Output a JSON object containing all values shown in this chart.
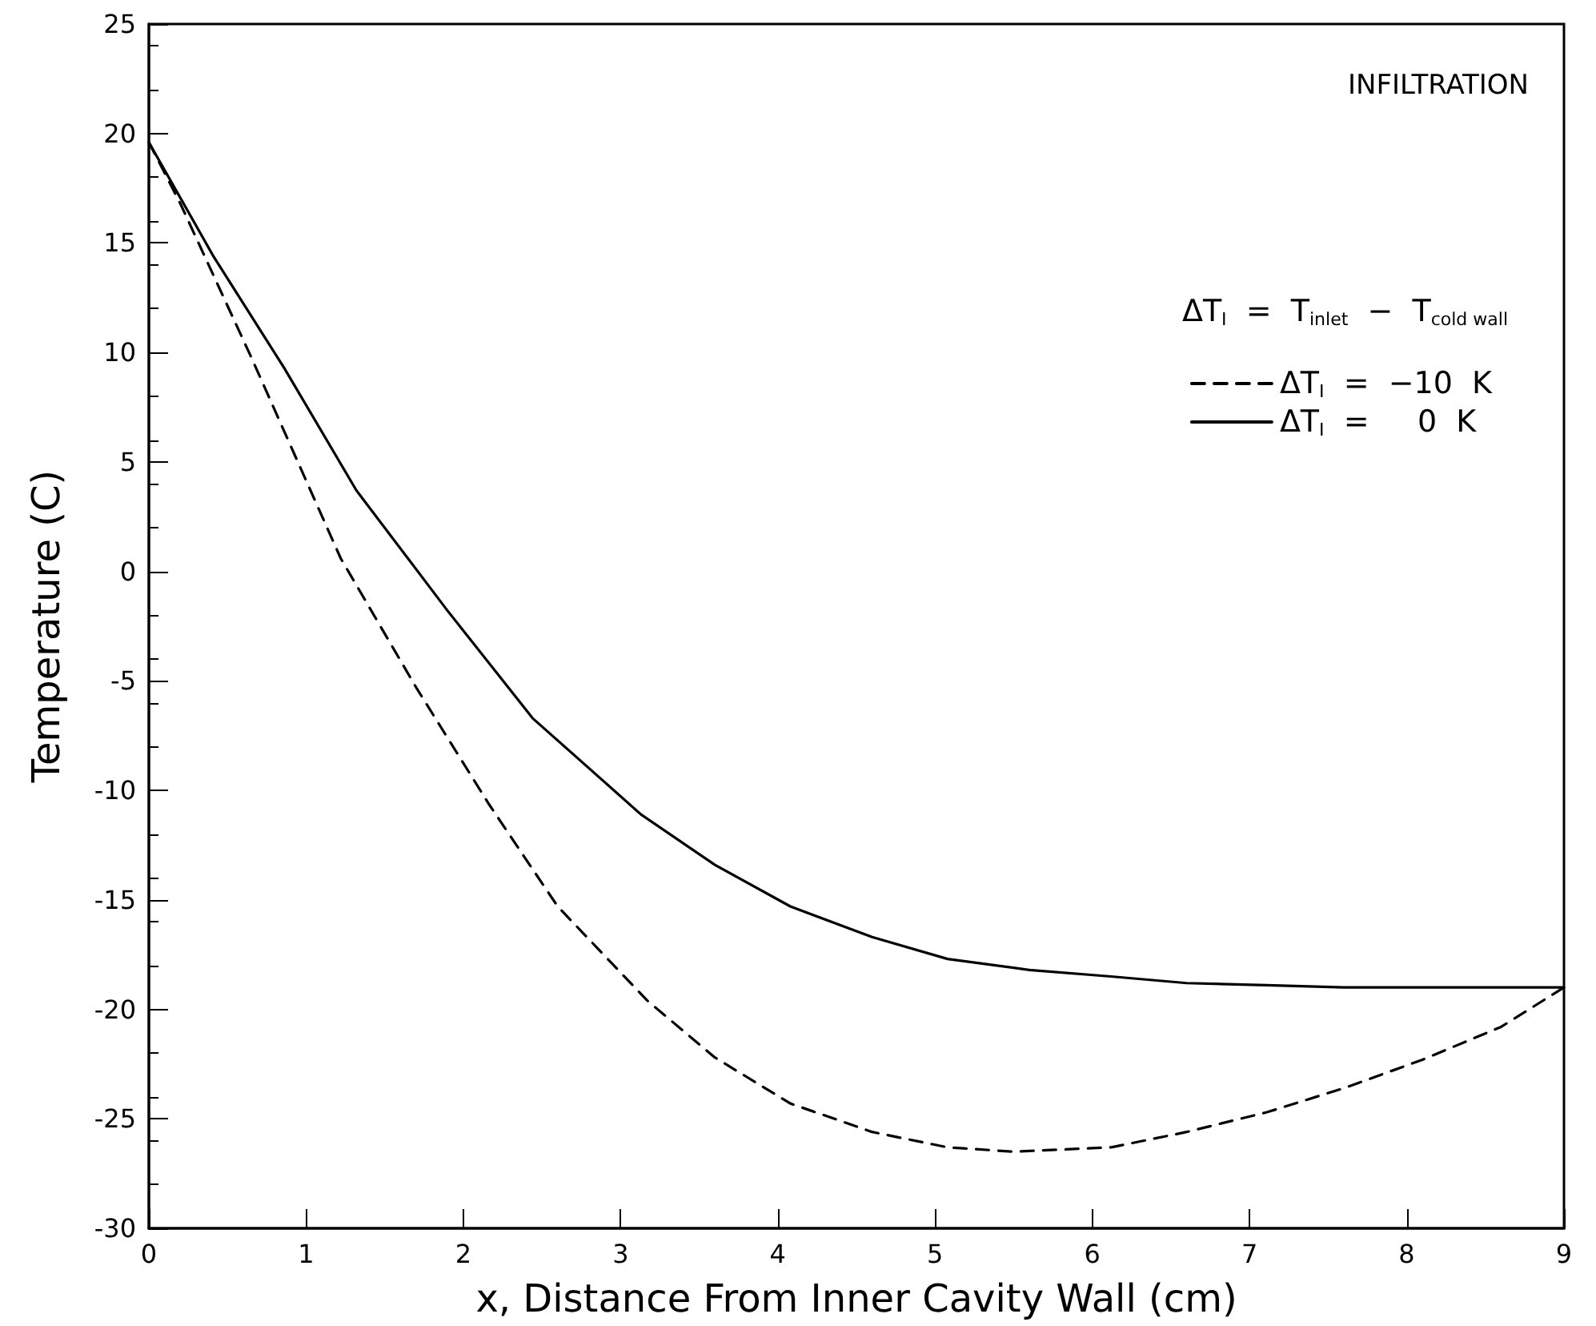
{
  "chart_data": {
    "type": "line",
    "xlabel": "x, Distance From Inner Cavity Wall (cm)",
    "ylabel": "Temperature (C)",
    "legend_title": "ΔT$_{I}$  =  T$_{inlet}$  −  T$_{cold wall}$",
    "annotations": [
      "INFILTRATION"
    ],
    "xlim": [
      0,
      9
    ],
    "xticks": [
      0,
      1,
      2,
      3,
      4,
      5,
      6,
      7,
      8,
      9
    ],
    "ylim": [
      -30,
      25
    ],
    "yticks": [
      -30,
      -25,
      -20,
      -15,
      -10,
      -5,
      0,
      5,
      10,
      15,
      20,
      25
    ],
    "grid": false,
    "legend": "top right",
    "marker": "none",
    "series": [
      {
        "name": "ΔT$_{I}$  =  −10  K",
        "color": "#000000",
        "line_style": "dashed",
        "x": [
          0,
          0.2,
          0.65,
          1.22,
          1.7,
          2.16,
          2.6,
          3.17,
          3.6,
          4.08,
          4.6,
          5.08,
          5.5,
          6.12,
          6.6,
          7.11,
          7.6,
          8.1,
          8.6,
          9
        ],
        "values": [
          19.6,
          16.8,
          9.8,
          0.6,
          -5.3,
          -10.6,
          -15.3,
          -19.6,
          -22.2,
          -24.3,
          -25.6,
          -26.3,
          -26.5,
          -26.3,
          -25.6,
          -24.7,
          -23.6,
          -22.3,
          -20.8,
          -19
        ]
      },
      {
        "name": "ΔT$_{I}$  =     0  K",
        "color": "#000000",
        "line_style": "solid",
        "x": [
          0,
          0.41,
          0.86,
          1.32,
          1.9,
          2.44,
          3.13,
          3.6,
          4.08,
          4.6,
          5.08,
          5.6,
          6.12,
          6.6,
          7.11,
          7.6,
          8.1,
          8.6,
          9
        ],
        "values": [
          19.6,
          14.4,
          9.3,
          3.7,
          -1.8,
          -6.7,
          -11.1,
          -13.4,
          -15.3,
          -16.7,
          -17.7,
          -18.2,
          -18.5,
          -18.8,
          -18.9,
          -19,
          -19,
          -19,
          -19
        ]
      }
    ]
  }
}
